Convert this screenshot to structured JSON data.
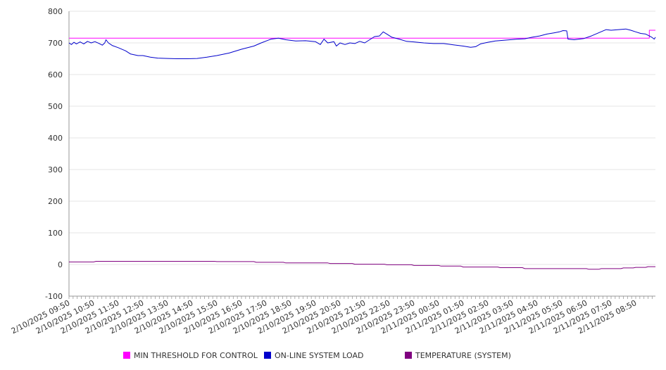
{
  "chart_data": {
    "type": "line",
    "ylim": [
      -100,
      800
    ],
    "yticks": [
      -100,
      0,
      100,
      200,
      300,
      400,
      500,
      600,
      700,
      800
    ],
    "grid": true,
    "legend_position": "bottom",
    "x_tick_labels": [
      "2/10/2025 09:50",
      "2/10/2025 10:50",
      "2/10/2025 11:50",
      "2/10/2025 12:50",
      "2/10/2025 13:50",
      "2/10/2025 14:50",
      "2/10/2025 15:50",
      "2/10/2025 16:50",
      "2/10/2025 17:50",
      "2/10/2025 18:50",
      "2/10/2025 19:50",
      "2/10/2025 20:50",
      "2/10/2025 21:50",
      "2/10/2025 22:50",
      "2/10/2025 23:50",
      "2/11/2025 00:50",
      "2/11/2025 01:50",
      "2/11/2025 02:50",
      "2/11/2025 03:50",
      "2/11/2025 04:50",
      "2/11/2025 05:50",
      "2/11/2025 06:50",
      "2/11/2025 07:50",
      "2/11/2025 08:50"
    ],
    "x_hours": [
      0,
      23.8
    ],
    "series": [
      {
        "name": "MIN THRESHOLD FOR CONTROL",
        "color": "#ff00ff",
        "points": [
          [
            0,
            715
          ],
          [
            23.55,
            715
          ],
          [
            23.55,
            740
          ],
          [
            23.8,
            740
          ]
        ]
      },
      {
        "name": "ON-LINE SYSTEM LOAD",
        "color": "#0000cc",
        "points": [
          [
            0,
            700
          ],
          [
            0.1,
            695
          ],
          [
            0.2,
            702
          ],
          [
            0.3,
            697
          ],
          [
            0.45,
            703
          ],
          [
            0.6,
            697
          ],
          [
            0.75,
            705
          ],
          [
            0.9,
            700
          ],
          [
            1.05,
            704
          ],
          [
            1.2,
            699
          ],
          [
            1.35,
            693
          ],
          [
            1.45,
            700
          ],
          [
            1.5,
            710
          ],
          [
            1.6,
            700
          ],
          [
            1.75,
            692
          ],
          [
            2.0,
            685
          ],
          [
            2.3,
            675
          ],
          [
            2.5,
            665
          ],
          [
            2.8,
            660
          ],
          [
            3.0,
            660
          ],
          [
            3.3,
            655
          ],
          [
            3.6,
            652
          ],
          [
            4.0,
            651
          ],
          [
            4.4,
            650
          ],
          [
            4.8,
            650
          ],
          [
            5.2,
            651
          ],
          [
            5.6,
            655
          ],
          [
            6.0,
            660
          ],
          [
            6.5,
            668
          ],
          [
            7.0,
            680
          ],
          [
            7.5,
            690
          ],
          [
            7.8,
            700
          ],
          [
            8.2,
            712
          ],
          [
            8.5,
            715
          ],
          [
            8.8,
            710
          ],
          [
            9.2,
            706
          ],
          [
            9.6,
            707
          ],
          [
            10.0,
            704
          ],
          [
            10.2,
            695
          ],
          [
            10.35,
            712
          ],
          [
            10.5,
            700
          ],
          [
            10.75,
            704
          ],
          [
            10.85,
            690
          ],
          [
            11.0,
            700
          ],
          [
            11.2,
            695
          ],
          [
            11.4,
            700
          ],
          [
            11.6,
            698
          ],
          [
            11.8,
            705
          ],
          [
            12.0,
            700
          ],
          [
            12.2,
            710
          ],
          [
            12.4,
            720
          ],
          [
            12.6,
            722
          ],
          [
            12.75,
            735
          ],
          [
            12.9,
            728
          ],
          [
            13.1,
            718
          ],
          [
            13.4,
            712
          ],
          [
            13.7,
            705
          ],
          [
            14.0,
            703
          ],
          [
            14.4,
            700
          ],
          [
            14.8,
            698
          ],
          [
            15.2,
            698
          ],
          [
            15.6,
            694
          ],
          [
            16.0,
            690
          ],
          [
            16.3,
            686
          ],
          [
            16.5,
            688
          ],
          [
            16.7,
            697
          ],
          [
            17.0,
            702
          ],
          [
            17.3,
            706
          ],
          [
            17.6,
            708
          ],
          [
            17.9,
            710
          ],
          [
            18.2,
            712
          ],
          [
            18.5,
            713
          ],
          [
            18.8,
            718
          ],
          [
            19.1,
            722
          ],
          [
            19.4,
            728
          ],
          [
            19.7,
            732
          ],
          [
            19.9,
            735
          ],
          [
            20.05,
            739
          ],
          [
            20.2,
            738
          ],
          [
            20.25,
            712
          ],
          [
            20.5,
            710
          ],
          [
            20.9,
            714
          ],
          [
            21.2,
            722
          ],
          [
            21.5,
            732
          ],
          [
            21.8,
            742
          ],
          [
            22.0,
            740
          ],
          [
            22.3,
            742
          ],
          [
            22.6,
            744
          ],
          [
            22.8,
            740
          ],
          [
            23.0,
            735
          ],
          [
            23.2,
            730
          ],
          [
            23.4,
            728
          ],
          [
            23.55,
            722
          ],
          [
            23.65,
            718
          ],
          [
            23.75,
            712
          ],
          [
            23.8,
            718
          ]
        ]
      },
      {
        "name": "TEMPERATURE (SYSTEM)",
        "color": "#800080",
        "points": [
          [
            0,
            8
          ],
          [
            1.0,
            8
          ],
          [
            1.1,
            10
          ],
          [
            2.5,
            10
          ],
          [
            5.9,
            10
          ],
          [
            6.0,
            9
          ],
          [
            7.5,
            9
          ],
          [
            7.6,
            7
          ],
          [
            8.7,
            7
          ],
          [
            8.8,
            5
          ],
          [
            10.5,
            5
          ],
          [
            10.6,
            3
          ],
          [
            11.5,
            3
          ],
          [
            11.6,
            1
          ],
          [
            12.8,
            1
          ],
          [
            12.9,
            -1
          ],
          [
            13.9,
            -1
          ],
          [
            14.0,
            -3
          ],
          [
            15.0,
            -3
          ],
          [
            15.1,
            -5
          ],
          [
            15.9,
            -5
          ],
          [
            16.0,
            -8
          ],
          [
            17.4,
            -8
          ],
          [
            17.5,
            -10
          ],
          [
            18.4,
            -10
          ],
          [
            18.5,
            -13
          ],
          [
            21.0,
            -13
          ],
          [
            21.1,
            -15
          ],
          [
            21.5,
            -15
          ],
          [
            21.6,
            -13
          ],
          [
            22.4,
            -13
          ],
          [
            22.5,
            -11
          ],
          [
            22.9,
            -11
          ],
          [
            23.0,
            -9
          ],
          [
            23.4,
            -9
          ],
          [
            23.5,
            -7
          ],
          [
            23.8,
            -7
          ]
        ]
      }
    ]
  },
  "legend": [
    {
      "label": "MIN THRESHOLD FOR CONTROL",
      "color": "#ff00ff"
    },
    {
      "label": "ON-LINE SYSTEM LOAD",
      "color": "#0000cc"
    },
    {
      "label": "TEMPERATURE (SYSTEM)",
      "color": "#800080"
    }
  ]
}
